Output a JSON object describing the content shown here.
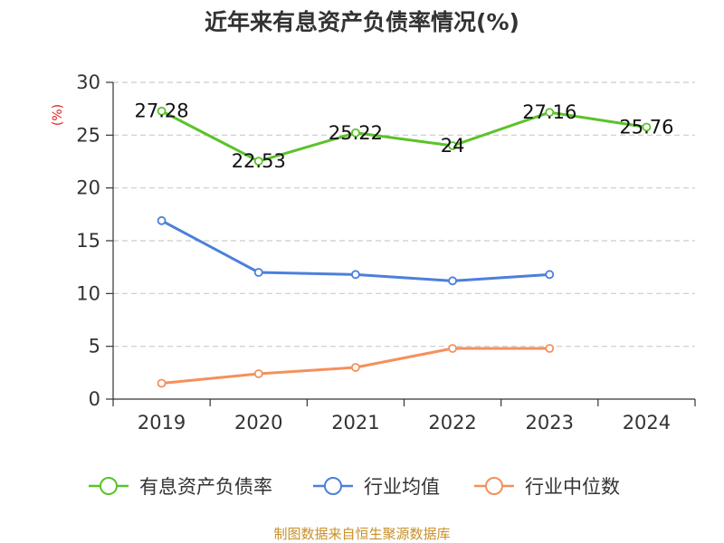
{
  "chart_data": {
    "type": "line",
    "title": "近年来有息资产负债率情况(%)",
    "unit_label": "(%)",
    "categories": [
      "2019",
      "2020",
      "2021",
      "2022",
      "2023",
      "2024"
    ],
    "ylim": [
      0,
      30
    ],
    "yticks": [
      0,
      5,
      10,
      15,
      20,
      25,
      30
    ],
    "grid": true,
    "legend_position": "bottom",
    "series": [
      {
        "name": "有息资产负债率",
        "color": "#5cc22a",
        "values": [
          27.28,
          22.53,
          25.22,
          24,
          27.16,
          25.76
        ],
        "labels": [
          "27.28",
          "22.53",
          "25.22",
          "24",
          "27.16",
          "25.76"
        ]
      },
      {
        "name": "行业均值",
        "color": "#4d7fdb",
        "values": [
          16.9,
          12.0,
          11.8,
          11.2,
          11.8,
          null
        ]
      },
      {
        "name": "行业中位数",
        "color": "#f5905a",
        "values": [
          1.5,
          2.4,
          3.0,
          4.8,
          4.8,
          null
        ]
      }
    ]
  },
  "source_note": "制图数据来自恒生聚源数据库"
}
